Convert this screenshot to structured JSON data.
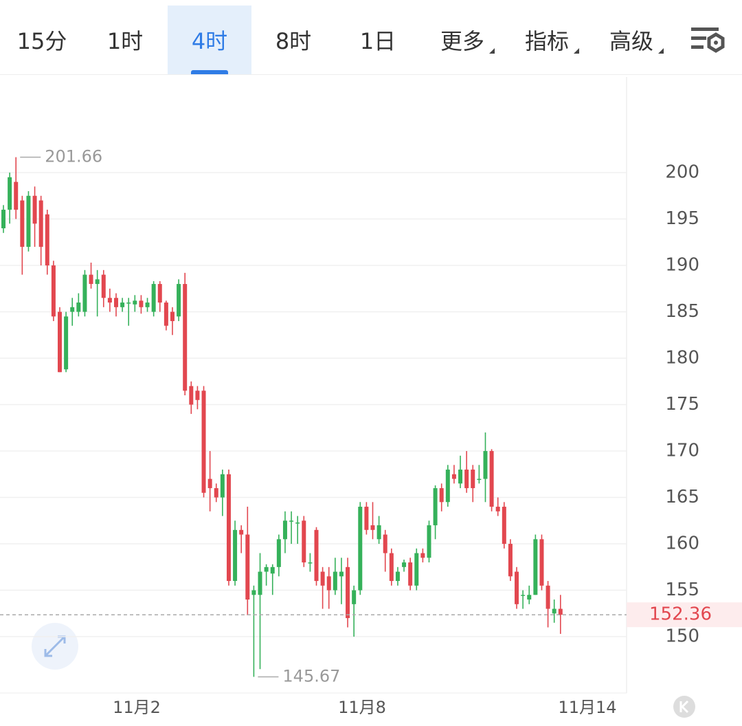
{
  "tabs": [
    "15分",
    "1时",
    "4时",
    "8时",
    "1日",
    "更多",
    "指标",
    "高级"
  ],
  "active_tab": 2,
  "chart_data": {
    "type": "candlestick",
    "up_color": "#35b15a",
    "down_color": "#e2474f",
    "open": [
      194,
      196,
      199,
      197,
      192,
      197.5,
      197,
      195.5,
      190,
      185,
      178.8,
      185,
      185,
      185,
      189,
      188,
      189,
      186.5,
      186.5,
      185.5,
      186,
      185.8,
      186.2,
      185.5,
      185,
      188,
      186,
      185,
      184.5,
      188,
      177,
      176.5,
      176.5,
      167,
      166,
      165,
      167.5,
      156,
      161.5,
      161,
      154.5,
      154.5,
      157,
      156.8,
      157.5,
      160.5,
      162.5,
      162.3,
      162.5,
      158,
      161.5,
      157,
      156.5,
      155,
      156.5,
      157.5,
      153.5,
      155,
      164,
      162,
      160.5,
      161,
      159,
      156,
      157.5,
      158,
      155.5,
      159,
      158.5,
      162,
      166,
      164.5,
      167.5,
      166.5,
      168,
      168,
      167,
      167,
      170,
      164,
      164,
      160,
      157,
      154.5,
      154,
      154.5,
      160.5,
      155.5,
      152.5,
      153
    ],
    "high": [
      196.5,
      200,
      201.66,
      197.5,
      198,
      198.5,
      197.5,
      196,
      190.5,
      185.5,
      185,
      186.5,
      187,
      189.5,
      190.3,
      189.5,
      189.5,
      187.5,
      187,
      186.5,
      186.5,
      186.8,
      186.8,
      186.5,
      188.3,
      188.3,
      186.2,
      185.5,
      188.5,
      189.2,
      177.5,
      177,
      177,
      170,
      166.5,
      168,
      168,
      162.5,
      162,
      164,
      155.5,
      159,
      157.8,
      157.8,
      161,
      163.5,
      163.5,
      163,
      163,
      159,
      161.8,
      157.5,
      157.5,
      158.5,
      158.5,
      158.5,
      155.5,
      164.5,
      164.5,
      164.5,
      163,
      161.5,
      159.5,
      157.5,
      158.3,
      158.5,
      159.5,
      159.5,
      162.5,
      166.3,
      166.5,
      168.5,
      168.5,
      169.5,
      170,
      168.5,
      168.5,
      172,
      170.2,
      165,
      164.5,
      160.5,
      157.5,
      155,
      155.5,
      161,
      161,
      156,
      154,
      154.5
    ],
    "low": [
      193.5,
      194.5,
      195,
      189,
      191.5,
      192,
      190,
      189,
      184,
      178.5,
      178.5,
      183.5,
      184.5,
      184.5,
      187.5,
      184.5,
      185.5,
      185,
      184.5,
      185,
      183.5,
      185,
      184.8,
      185,
      184.5,
      185,
      183,
      182.5,
      184,
      176,
      174,
      174.5,
      165,
      163.5,
      164.5,
      163,
      155.5,
      155.5,
      159,
      152.3,
      145.67,
      146.5,
      155.5,
      154.5,
      156.5,
      159,
      160,
      160,
      157.5,
      157,
      155.5,
      153,
      153,
      154.5,
      153.5,
      151,
      150,
      154.5,
      161,
      160.5,
      160,
      157,
      155.5,
      155.5,
      157,
      155,
      155,
      158,
      158,
      160.5,
      163.5,
      164,
      166.5,
      166,
      165.5,
      164.5,
      166.5,
      164.5,
      163.5,
      163,
      159.5,
      156,
      153,
      153,
      153.5,
      154.5,
      155,
      151,
      151.5,
      150.3
    ],
    "close": [
      196,
      199.5,
      196,
      192,
      197.5,
      194.5,
      192,
      190,
      184.5,
      178.5,
      184.5,
      185.5,
      186,
      189,
      188,
      188.5,
      186.5,
      186,
      185.5,
      186,
      186,
      186.2,
      185.5,
      186,
      188,
      186,
      183.5,
      184,
      188,
      176.5,
      175,
      175.5,
      165.5,
      166,
      165,
      167.5,
      156,
      161.5,
      161,
      154,
      155,
      157,
      157.5,
      157.5,
      160.5,
      162.5,
      162.5,
      162.3,
      158,
      158,
      156,
      155.5,
      155,
      157,
      157,
      152,
      155,
      164,
      161.5,
      161.5,
      162,
      159,
      156,
      157,
      158,
      155.5,
      159,
      158.5,
      162,
      166,
      164.5,
      168,
      167,
      168,
      166,
      166,
      167,
      170,
      164,
      163.5,
      160,
      156.5,
      153.5,
      154.5,
      154.5,
      160.5,
      155.5,
      153,
      153,
      152.36
    ],
    "xlim": [
      -0.55,
      99.56
    ],
    "xticks": [
      {
        "value": 21.3,
        "label": "11月2"
      },
      {
        "value": 57.3,
        "label": "11月8"
      },
      {
        "value": 93.3,
        "label": "11月14"
      }
    ],
    "ylim": [
      143.93,
      210.3
    ],
    "yticks": [
      150,
      155,
      160,
      165,
      170,
      175,
      180,
      185,
      190,
      195,
      200
    ],
    "grid": true,
    "max_price": 201.66,
    "min_price": 145.67,
    "last_price": 152.36
  }
}
